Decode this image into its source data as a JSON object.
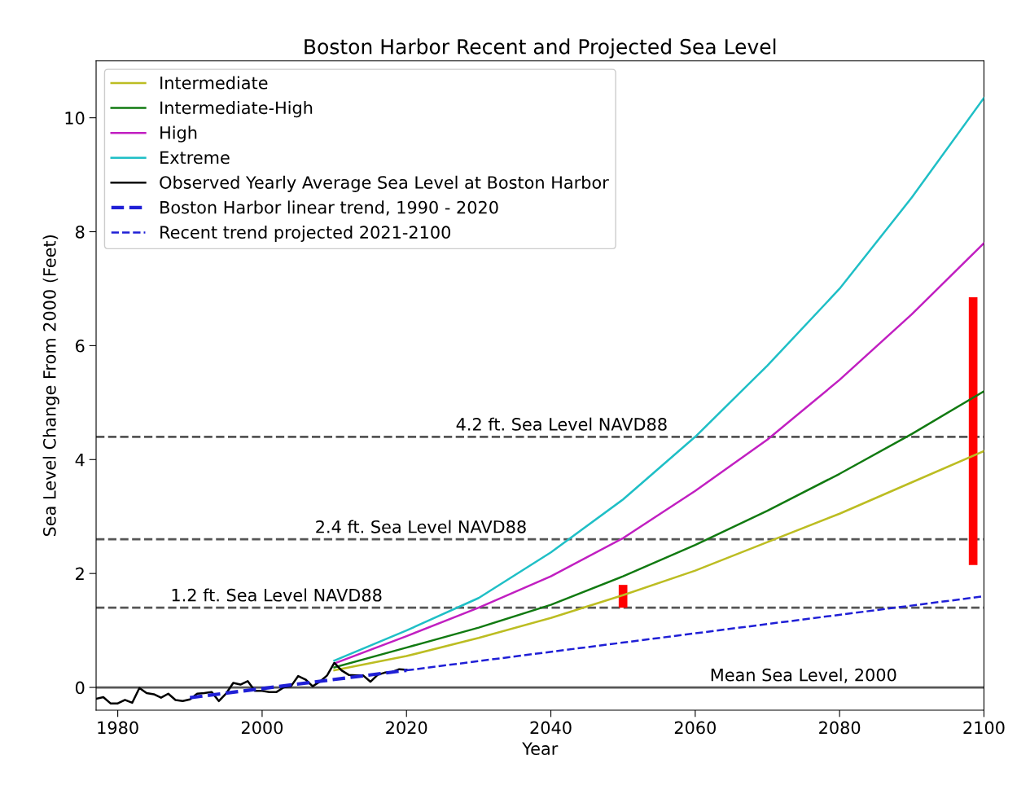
{
  "chart_data": {
    "type": "line",
    "title": "Boston Harbor Recent and Projected Sea Level",
    "xlabel": "Year",
    "ylabel": "Sea Level Change From 2000 (Feet)",
    "xlim": [
      1977,
      2100
    ],
    "xticks": [
      1980,
      2000,
      2020,
      2040,
      2060,
      2080,
      2100
    ],
    "ylim": [
      -0.4,
      11.0
    ],
    "yticks": [
      0,
      2,
      4,
      6,
      8,
      10
    ],
    "grid": false,
    "legend": "top left",
    "marker": "none",
    "series": [
      {
        "name": "Intermediate",
        "color": "#bcbd22",
        "x": [
          2010,
          2020,
          2030,
          2040,
          2050,
          2060,
          2070,
          2080,
          2090,
          2100
        ],
        "values": [
          0.3,
          0.55,
          0.87,
          1.22,
          1.62,
          2.05,
          2.55,
          3.05,
          3.6,
          4.15
        ]
      },
      {
        "name": "Intermediate-High",
        "color": "#117a11",
        "x": [
          2010,
          2020,
          2030,
          2040,
          2050,
          2060,
          2070,
          2080,
          2090,
          2100
        ],
        "values": [
          0.35,
          0.7,
          1.05,
          1.45,
          1.95,
          2.5,
          3.1,
          3.75,
          4.45,
          5.2
        ]
      },
      {
        "name": "High",
        "color": "#c11fc1",
        "x": [
          2010,
          2020,
          2030,
          2040,
          2050,
          2060,
          2070,
          2080,
          2090,
          2100
        ],
        "values": [
          0.42,
          0.9,
          1.4,
          1.95,
          2.62,
          3.45,
          4.35,
          5.4,
          6.55,
          7.8
        ]
      },
      {
        "name": "Extreme",
        "color": "#1fbfc6",
        "x": [
          2010,
          2020,
          2030,
          2040,
          2050,
          2060,
          2070,
          2080,
          2090,
          2100
        ],
        "values": [
          0.47,
          1.0,
          1.57,
          2.37,
          3.3,
          4.4,
          5.65,
          7.0,
          8.6,
          10.35
        ]
      },
      {
        "name": "Observed Yearly Average Sea Level at Boston Harbor",
        "color": "#000000",
        "x": [
          1977,
          1978,
          1979,
          1980,
          1981,
          1982,
          1983,
          1984,
          1985,
          1986,
          1987,
          1988,
          1989,
          1990,
          1991,
          1992,
          1993,
          1994,
          1995,
          1996,
          1997,
          1998,
          1999,
          2000,
          2001,
          2002,
          2003,
          2004,
          2005,
          2006,
          2007,
          2008,
          2009,
          2010,
          2011,
          2012,
          2013,
          2014,
          2015,
          2016,
          2017,
          2018,
          2019,
          2020
        ],
        "values": [
          -0.2,
          -0.17,
          -0.28,
          -0.28,
          -0.22,
          -0.27,
          -0.01,
          -0.1,
          -0.12,
          -0.18,
          -0.11,
          -0.22,
          -0.24,
          -0.21,
          -0.11,
          -0.1,
          -0.08,
          -0.24,
          -0.11,
          0.08,
          0.05,
          0.11,
          -0.06,
          -0.06,
          -0.08,
          -0.08,
          0.0,
          0.02,
          0.2,
          0.14,
          0.02,
          0.1,
          0.21,
          0.43,
          0.3,
          0.22,
          0.21,
          0.21,
          0.1,
          0.22,
          0.26,
          0.27,
          0.32,
          0.31
        ]
      },
      {
        "name": "Boston Harbor linear trend, 1990 - 2020",
        "color": "#1f1fd6",
        "line_style": "dashed",
        "x": [
          1990,
          2020
        ],
        "values": [
          -0.18,
          0.3
        ]
      },
      {
        "name": "Recent trend projected 2021-2100",
        "color": "#1f1fd6",
        "line_style": "dashed",
        "x": [
          2020,
          2100
        ],
        "values": [
          0.3,
          1.6
        ]
      },
      {
        "type": "bar",
        "color": "#ff0000",
        "x": [
          2050,
          2098.5
        ],
        "base": [
          1.4,
          2.15
        ],
        "values": [
          0.4,
          4.7
        ]
      }
    ],
    "ref_lines": [
      {
        "axis": "y",
        "value": 4.4,
        "color": "#555555",
        "line_style": "dashed"
      },
      {
        "axis": "y",
        "value": 2.6,
        "color": "#555555",
        "line_style": "dashed"
      },
      {
        "axis": "y",
        "value": 1.4,
        "color": "#555555",
        "line_style": "dashed"
      },
      {
        "axis": "y",
        "value": 0,
        "color": "#555555",
        "line_style": "solid"
      }
    ],
    "annotations": [
      {
        "text": "4.2 ft. Sea Level NAVD88",
        "x": 2041.5,
        "y": 4.4
      },
      {
        "text": "2.4 ft. Sea Level NAVD88",
        "x": 2022,
        "y": 2.6
      },
      {
        "text": "1.2 ft. Sea Level NAVD88",
        "x": 2002,
        "y": 1.4
      },
      {
        "text": "Mean Sea Level, 2000",
        "x": 2075,
        "y": 0
      }
    ]
  }
}
